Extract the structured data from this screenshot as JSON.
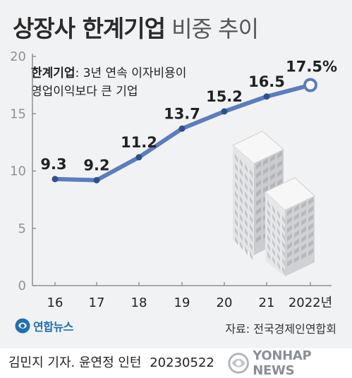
{
  "title": {
    "main": "상장사 한계기업",
    "sub": "비중 추이"
  },
  "subtitle": {
    "term": "한계기업",
    "line1": ": 3년 연속 이자비용이",
    "line2": "영업이익보다 큰 기업"
  },
  "chart_data": {
    "type": "line",
    "categories": [
      "16",
      "17",
      "18",
      "19",
      "20",
      "21",
      "2022년"
    ],
    "values": [
      9.3,
      9.2,
      11.2,
      13.7,
      15.2,
      16.5,
      17.5
    ],
    "value_labels": [
      "9.3",
      "9.2",
      "11.2",
      "13.7",
      "15.2",
      "16.5",
      "17.5%"
    ],
    "y_ticks": [
      0,
      5,
      10,
      15,
      20
    ],
    "ylim": [
      0,
      20
    ],
    "grid": false,
    "series_color": "#5b7cbf",
    "last_point_style": "hollow"
  },
  "logo": {
    "text": "연합뉴스",
    "icon": "yonhap-circle-logo"
  },
  "source": "자료: 전국경제인연합회",
  "credit": {
    "reporters": "김민지 기자. 윤연정 인턴",
    "date": "20230522"
  },
  "watermark": {
    "text": "YONHAP NEWS",
    "icon": "yonhap-globe-icon"
  },
  "colors": {
    "background": "#f1f2f3",
    "line": "#5b7cbf",
    "axis": "#7f7f7f",
    "logo": "#1f6fb5"
  }
}
